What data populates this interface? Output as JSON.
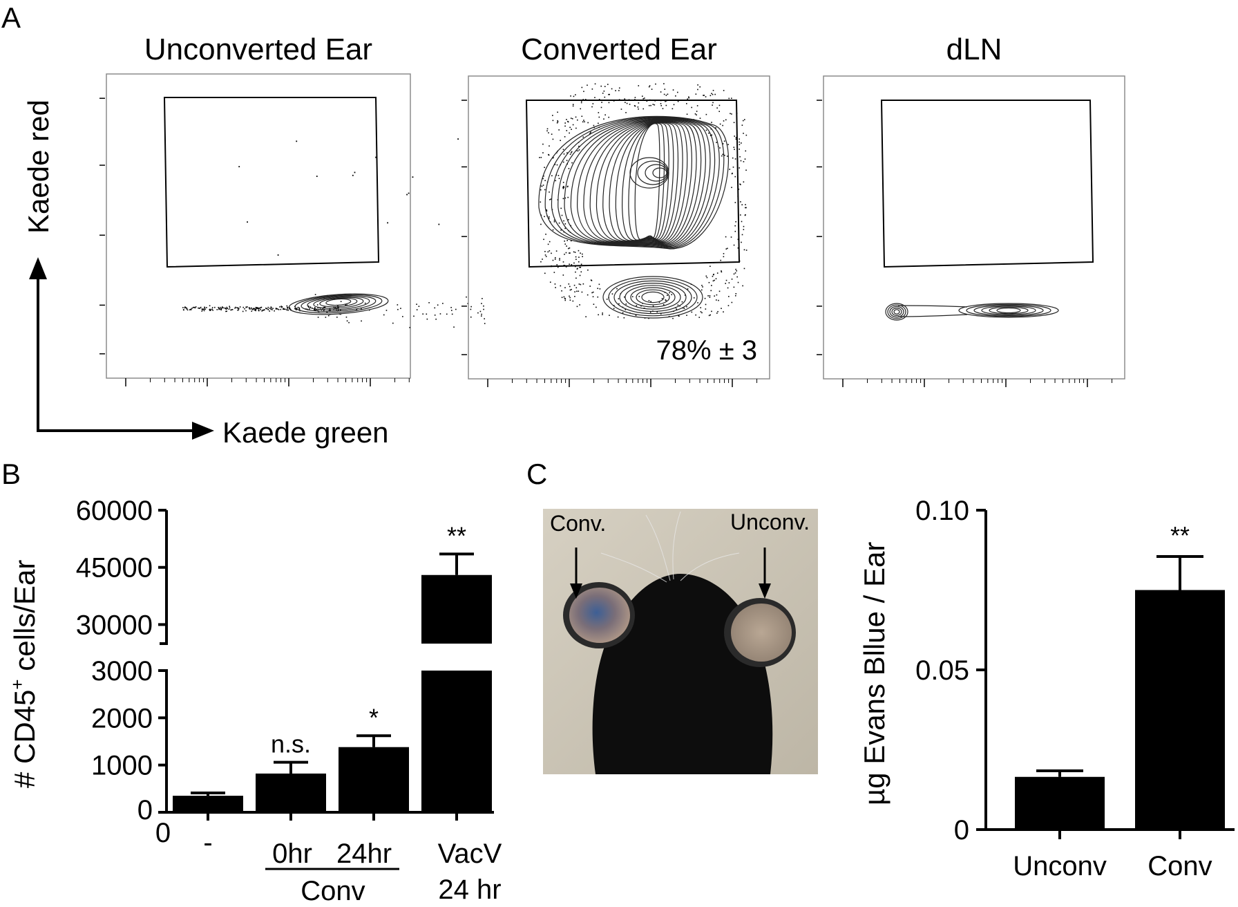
{
  "panels": {
    "a": {
      "letter": "A",
      "plots": [
        {
          "title": "Unconverted Ear",
          "gate_value": ""
        },
        {
          "title": "Converted Ear",
          "gate_value": "78% ± 3"
        },
        {
          "title": "dLN",
          "gate_value": ""
        }
      ],
      "y_axis_label": "Kaede red",
      "x_axis_label": "Kaede green"
    },
    "b": {
      "letter": "B"
    },
    "c": {
      "letter": "C",
      "photo": {
        "left_label": "Conv.",
        "right_label": "Unconv."
      }
    }
  },
  "chart_data": [
    {
      "type": "bar",
      "panel": "B",
      "ylabel": "# CD45⁺ cells/Ear",
      "y_axis_break": {
        "lower": [
          0,
          3000
        ],
        "upper": [
          25000,
          60000
        ]
      },
      "yticks_lower": [
        "0",
        "1000",
        "2000",
        "3000"
      ],
      "yticks_upper": [
        "30000",
        "45000",
        "60000"
      ],
      "origin_label": "0",
      "categories": [
        "-",
        "0hr",
        "24hr",
        "VacV 24 hr"
      ],
      "group_label": {
        "text": "Conv",
        "spans": [
          "0hr",
          "24hr"
        ]
      },
      "values": [
        350,
        820,
        1380,
        43000
      ],
      "errors": [
        60,
        240,
        240,
        5500
      ],
      "significance": [
        "",
        "n.s.",
        "*",
        "**"
      ]
    },
    {
      "type": "bar",
      "panel": "C",
      "ylabel": "µg Evans Bllue / Ear",
      "ylim": [
        0,
        0.1
      ],
      "yticks": [
        "0",
        "0.05",
        "0.10"
      ],
      "categories": [
        "Unconv",
        "Conv"
      ],
      "values": [
        0.0165,
        0.075
      ],
      "errors": [
        0.0019,
        0.0105
      ],
      "significance": [
        "",
        "**"
      ]
    }
  ]
}
